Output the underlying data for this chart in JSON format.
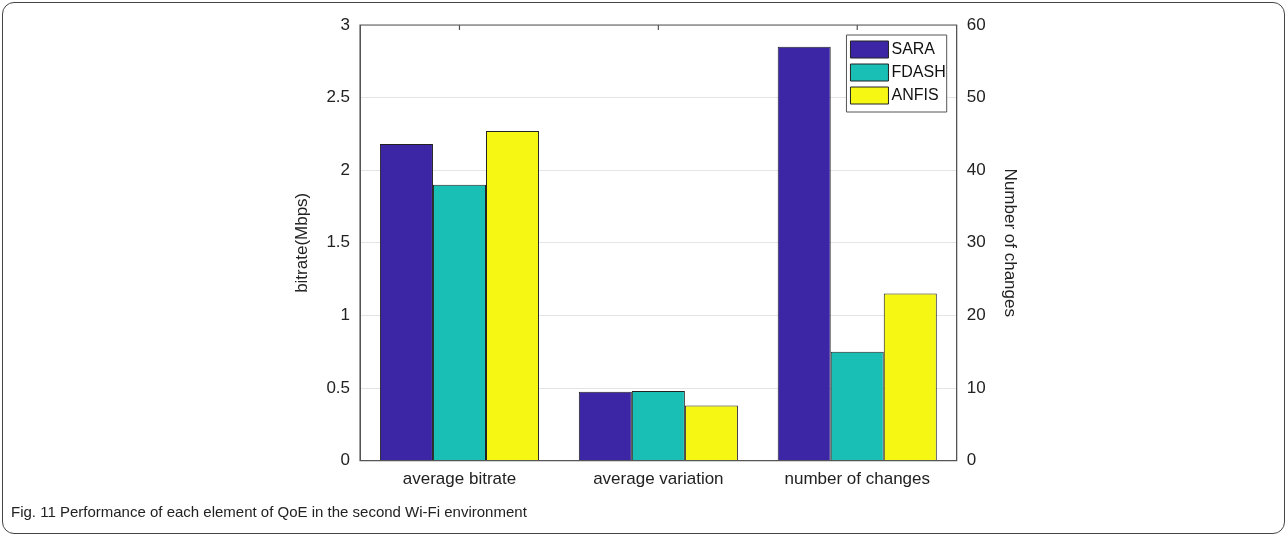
{
  "chart_data": {
    "type": "bar",
    "categories": [
      "average bitrate",
      "average variation",
      "number of changes"
    ],
    "ylabel": "bitrate(Mbps)",
    "y2label": "Number of changes",
    "ylim": [
      0,
      3
    ],
    "yticks": [
      0,
      0.5,
      1,
      1.5,
      2,
      2.5,
      3
    ],
    "y2lim": [
      0,
      60
    ],
    "y2ticks": [
      0,
      10,
      20,
      30,
      40,
      50,
      60
    ],
    "series": [
      {
        "name": "SARA",
        "color": "#3c26a6",
        "values": [
          2.18,
          0.475,
          null
        ]
      },
      {
        "name": "FDASH",
        "color": "#19bfb5",
        "values": [
          1.9,
          0.48,
          null
        ]
      },
      {
        "name": "ANFIS",
        "color": "#f7f714",
        "values": [
          2.27,
          0.38,
          null
        ]
      },
      {
        "color": "#3c26a6",
        "axis": "y2",
        "values": [
          null,
          null,
          57
        ]
      },
      {
        "color": "#19bfb5",
        "axis": "y2",
        "values": [
          null,
          null,
          15
        ]
      },
      {
        "color": "#f7f714",
        "axis": "y2",
        "values": [
          null,
          null,
          23
        ]
      }
    ],
    "grid": "y",
    "legend": "top right",
    "annotations": [
      "Fig. 11 Performance of each element of QoE in the second Wi-Fi environment"
    ]
  }
}
